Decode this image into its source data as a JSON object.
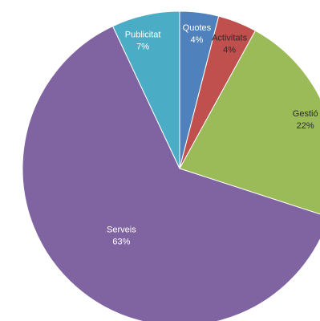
{
  "chart_data": {
    "type": "pie",
    "title": "",
    "slices": [
      {
        "category": "Quotes",
        "value": 4,
        "label": "4%",
        "color": "#4F81BD"
      },
      {
        "category": "Activitats",
        "value": 4,
        "label": "4%",
        "color": "#C0504D"
      },
      {
        "category": "Gestió",
        "value": 22,
        "label": "22%",
        "color": "#9BBB59"
      },
      {
        "category": "Serveis",
        "value": 63,
        "label": "63%",
        "color": "#8064A2"
      },
      {
        "category": "Publicitat",
        "value": 7,
        "label": "7%",
        "color": "#4BACC6"
      }
    ],
    "start_angle_deg": 0,
    "direction": "clockwise",
    "legend": "none"
  }
}
